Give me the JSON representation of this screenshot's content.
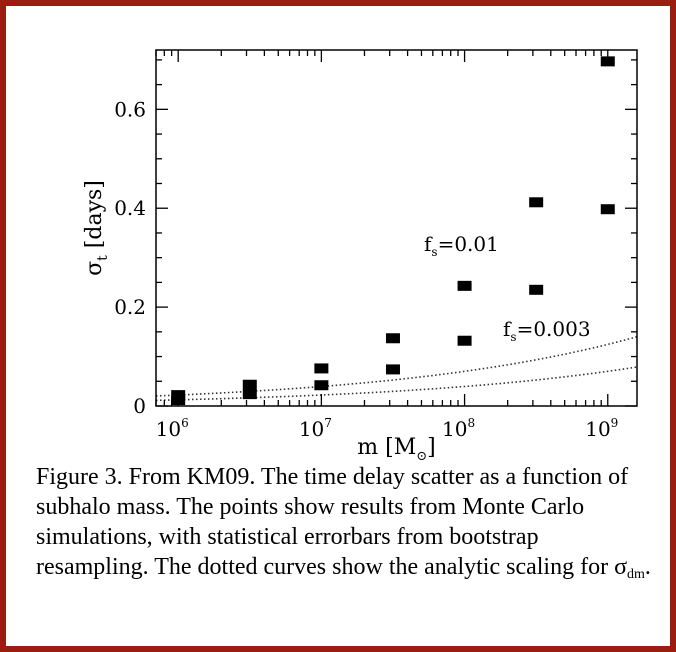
{
  "chart_data": {
    "type": "scatter",
    "title": "",
    "xlabel": "m",
    "xlabel_unit": "[M",
    "xlabel_unit_sub": "⊙",
    "xlabel_unit_close": "]",
    "ylabel": "σ",
    "ylabel_sub": "t",
    "ylabel_unit": " [days]",
    "x_scale": "log",
    "xlim": [
      700000,
      1600000000
    ],
    "ylim": [
      0,
      0.72
    ],
    "x_tick_labels": [
      {
        "base": "10",
        "exp": "6",
        "value": 1000000
      },
      {
        "base": "10",
        "exp": "7",
        "value": 10000000
      },
      {
        "base": "10",
        "exp": "8",
        "value": 100000000
      },
      {
        "base": "10",
        "exp": "9",
        "value": 1000000000
      }
    ],
    "y_ticks": [
      0,
      0.2,
      0.4,
      0.6
    ],
    "y_tick_labels": [
      "0",
      "0.2",
      "0.4",
      "0.6"
    ],
    "grid": false,
    "series": [
      {
        "name": "f",
        "name_sub": "s",
        "name_value": "=0.01",
        "x": [
          1000000,
          3162278,
          10000000,
          31622777,
          100000000,
          316227766,
          1000000000
        ],
        "y": [
          0.022,
          0.043,
          0.076,
          0.137,
          0.243,
          0.412,
          0.697
        ],
        "yerr": [
          0.008,
          0.008,
          0.008,
          0.008,
          0.008,
          0.009,
          0.009
        ]
      },
      {
        "name": "f",
        "name_sub": "s",
        "name_value": "=0.003",
        "x": [
          1000000,
          3162278,
          10000000,
          31622777,
          100000000,
          316227766,
          1000000000
        ],
        "y": [
          0.012,
          0.024,
          0.042,
          0.074,
          0.132,
          0.235,
          0.398
        ],
        "yerr": [
          0.008,
          0.008,
          0.008,
          0.008,
          0.008,
          0.008,
          0.008
        ]
      }
    ],
    "curves": [
      {
        "style": "dotted",
        "a": 0.0222,
        "b": 0.2497
      },
      {
        "style": "dotted",
        "a": 0.0125,
        "b": 0.2497
      }
    ]
  },
  "caption": {
    "text": "Figure 3. From KM09. The time delay scatter as a function of subhalo mass. The points show results from Monte Carlo simulations, with statistical errorbars from bootstrap resampling. The dotted curves show the analytic scaling for σ",
    "sub": "dm",
    "end": "."
  }
}
